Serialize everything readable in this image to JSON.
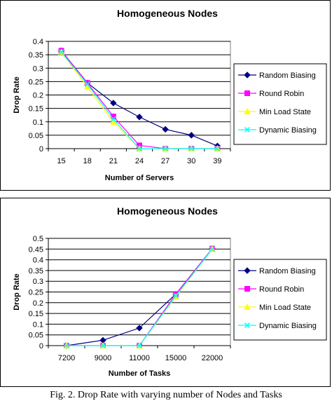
{
  "figure": {
    "caption": "Fig. 2. Drop Rate with varying number of Nodes and Tasks"
  },
  "chart_data": [
    {
      "type": "line",
      "title": "Homogeneous Nodes",
      "xlabel": "Number of Servers",
      "ylabel": "Drop Rate",
      "categories": [
        "15",
        "18",
        "21",
        "24",
        "27",
        "30",
        "39"
      ],
      "ylim": [
        0,
        0.4
      ],
      "yticks": [
        "0",
        "0.05",
        "0.1",
        "0.15",
        "0.2",
        "0.25",
        "0.3",
        "0.35",
        "0.4"
      ],
      "grid": true,
      "legend": "right",
      "series": [
        {
          "name": "Random Biasing",
          "color": "#000080",
          "marker": "diamond",
          "values": [
            0.365,
            0.245,
            0.17,
            0.118,
            0.072,
            0.05,
            0.01
          ]
        },
        {
          "name": "Round Robin",
          "color": "#ff00ff",
          "marker": "square",
          "values": [
            0.365,
            0.245,
            0.12,
            0.012,
            0.0,
            0.0,
            0.0
          ]
        },
        {
          "name": "Min Load State",
          "color": "#ffff00",
          "marker": "triangle",
          "values": [
            0.36,
            0.23,
            0.1,
            0.0,
            0.0,
            0.0,
            0.0
          ]
        },
        {
          "name": "Dynamic Biasing",
          "color": "#00ffff",
          "marker": "x",
          "values": [
            0.36,
            0.24,
            0.11,
            0.0,
            0.0,
            0.0,
            0.0
          ]
        }
      ]
    },
    {
      "type": "line",
      "title": "Homogeneous Nodes",
      "xlabel": "Number of Tasks",
      "ylabel": "Drop Rate",
      "categories": [
        "7200",
        "9000",
        "11000",
        "15000",
        "22000"
      ],
      "ylim": [
        0,
        0.5
      ],
      "yticks": [
        "0",
        "0.05",
        "0.1",
        "0.15",
        "0.2",
        "0.25",
        "0.3",
        "0.35",
        "0.4",
        "0.45",
        "0.5"
      ],
      "grid": true,
      "legend": "right",
      "series": [
        {
          "name": "Random Biasing",
          "color": "#000080",
          "marker": "diamond",
          "values": [
            0.0,
            0.025,
            0.082,
            0.24,
            0.452
          ]
        },
        {
          "name": "Round Robin",
          "color": "#ff00ff",
          "marker": "square",
          "values": [
            0.0,
            0.0,
            0.0,
            0.24,
            0.452
          ]
        },
        {
          "name": "Min Load State",
          "color": "#ffff00",
          "marker": "triangle",
          "values": [
            0.0,
            0.0,
            0.0,
            0.228,
            0.45
          ]
        },
        {
          "name": "Dynamic Biasing",
          "color": "#00ffff",
          "marker": "x",
          "values": [
            0.0,
            0.0,
            0.0,
            0.232,
            0.45
          ]
        }
      ]
    }
  ]
}
